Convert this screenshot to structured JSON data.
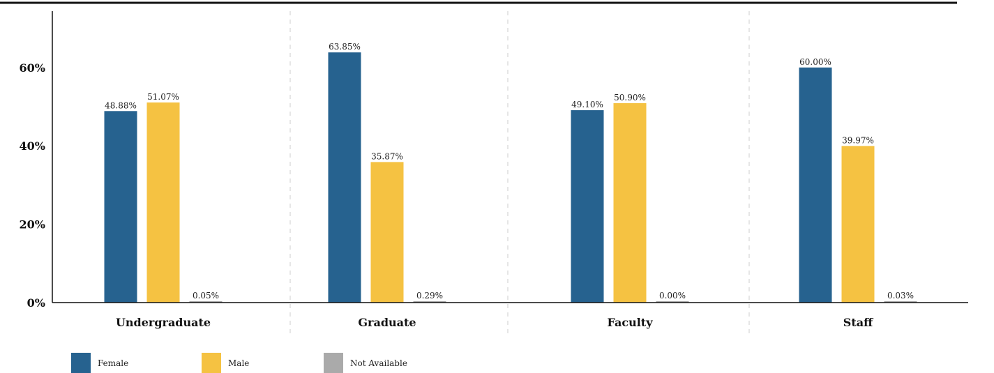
{
  "colors": {
    "Female": "#26628f",
    "Male": "#f5c242",
    "Not Available": "#aaaaaa",
    "axis": "#111111",
    "grid_divider": "#cccccc"
  },
  "chart_data": {
    "type": "bar",
    "title": "",
    "xlabel": "",
    "ylabel": "",
    "categories": [
      "Undergraduate",
      "Graduate",
      "Faculty",
      "Staff"
    ],
    "series": [
      {
        "name": "Female",
        "values": [
          48.88,
          63.85,
          49.1,
          60.0
        ],
        "labels": [
          "48.88%",
          "63.85%",
          "49.10%",
          "60.00%"
        ]
      },
      {
        "name": "Male",
        "values": [
          51.07,
          35.87,
          50.9,
          39.97
        ],
        "labels": [
          "51.07%",
          "35.87%",
          "50.90%",
          "39.97%"
        ]
      },
      {
        "name": "Not Available",
        "values": [
          0.05,
          0.29,
          0.0,
          0.03
        ],
        "labels": [
          "0.05%",
          "0.29%",
          "0.00%",
          "0.03%"
        ]
      }
    ],
    "yticks": [
      0,
      20,
      40,
      60
    ],
    "ytick_labels": [
      "0%",
      "20%",
      "40%",
      "60%"
    ],
    "ylim": [
      0,
      75
    ],
    "grid": false,
    "category_dividers": true,
    "legend": {
      "position": "bottom-left",
      "entries": [
        "Female",
        "Male",
        "Not Available"
      ]
    }
  }
}
